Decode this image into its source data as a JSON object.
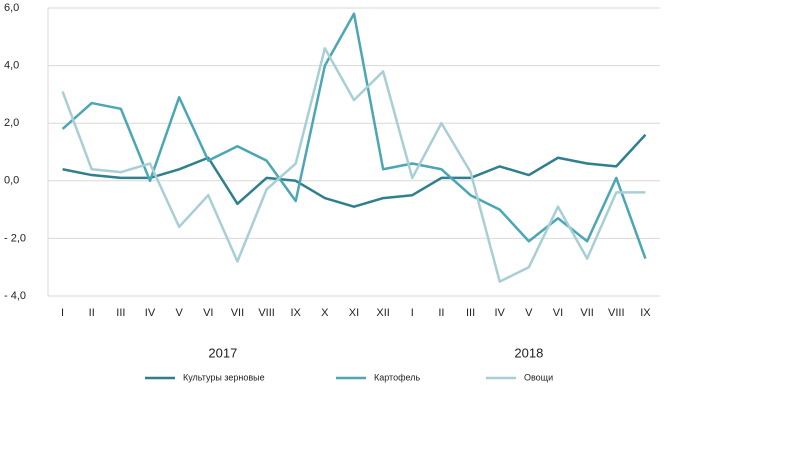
{
  "chart_data": {
    "type": "line",
    "categories": [
      "I",
      "II",
      "III",
      "IV",
      "V",
      "VI",
      "VII",
      "VIII",
      "IX",
      "X",
      "XI",
      "XII",
      "I",
      "II",
      "III",
      "IV",
      "V",
      "VI",
      "VII",
      "VIII",
      "IX"
    ],
    "x_groups": [
      "2017",
      "2018"
    ],
    "series": [
      {
        "name": "Культуры зерновые",
        "color": "#2f7f8e",
        "values": [
          0.4,
          0.2,
          0.1,
          0.1,
          0.4,
          0.8,
          -0.8,
          0.1,
          0.0,
          -0.6,
          -0.9,
          -0.6,
          -0.5,
          0.1,
          0.1,
          0.5,
          0.2,
          0.8,
          0.6,
          0.5,
          1.6
        ]
      },
      {
        "name": "Картофель",
        "color": "#4ba6b6",
        "values": [
          1.8,
          2.7,
          2.5,
          0.0,
          2.9,
          0.7,
          1.2,
          0.7,
          -0.7,
          4.0,
          5.8,
          0.4,
          0.6,
          0.4,
          -0.5,
          -1.0,
          -2.1,
          -1.3,
          -2.1,
          0.1,
          -2.7
        ]
      },
      {
        "name": "Овощи",
        "color": "#a8ced6",
        "values": [
          3.1,
          0.4,
          0.3,
          0.6,
          -1.6,
          -0.5,
          -2.8,
          -0.3,
          0.6,
          4.6,
          2.8,
          3.8,
          0.1,
          2.0,
          0.3,
          -3.5,
          -3.0,
          -0.9,
          -2.7,
          -0.4,
          -0.4
        ]
      }
    ],
    "ylim": [
      -4,
      6
    ],
    "yticks": [
      {
        "value": 6,
        "label": "6,0"
      },
      {
        "value": 4,
        "label": "4,0"
      },
      {
        "value": 2,
        "label": "2,0"
      },
      {
        "value": 0,
        "label": "0,0"
      },
      {
        "value": -2,
        "label": "- 2,0"
      },
      {
        "value": -4,
        "label": "- 4,0"
      }
    ],
    "grid": true,
    "legend": "bottom"
  }
}
